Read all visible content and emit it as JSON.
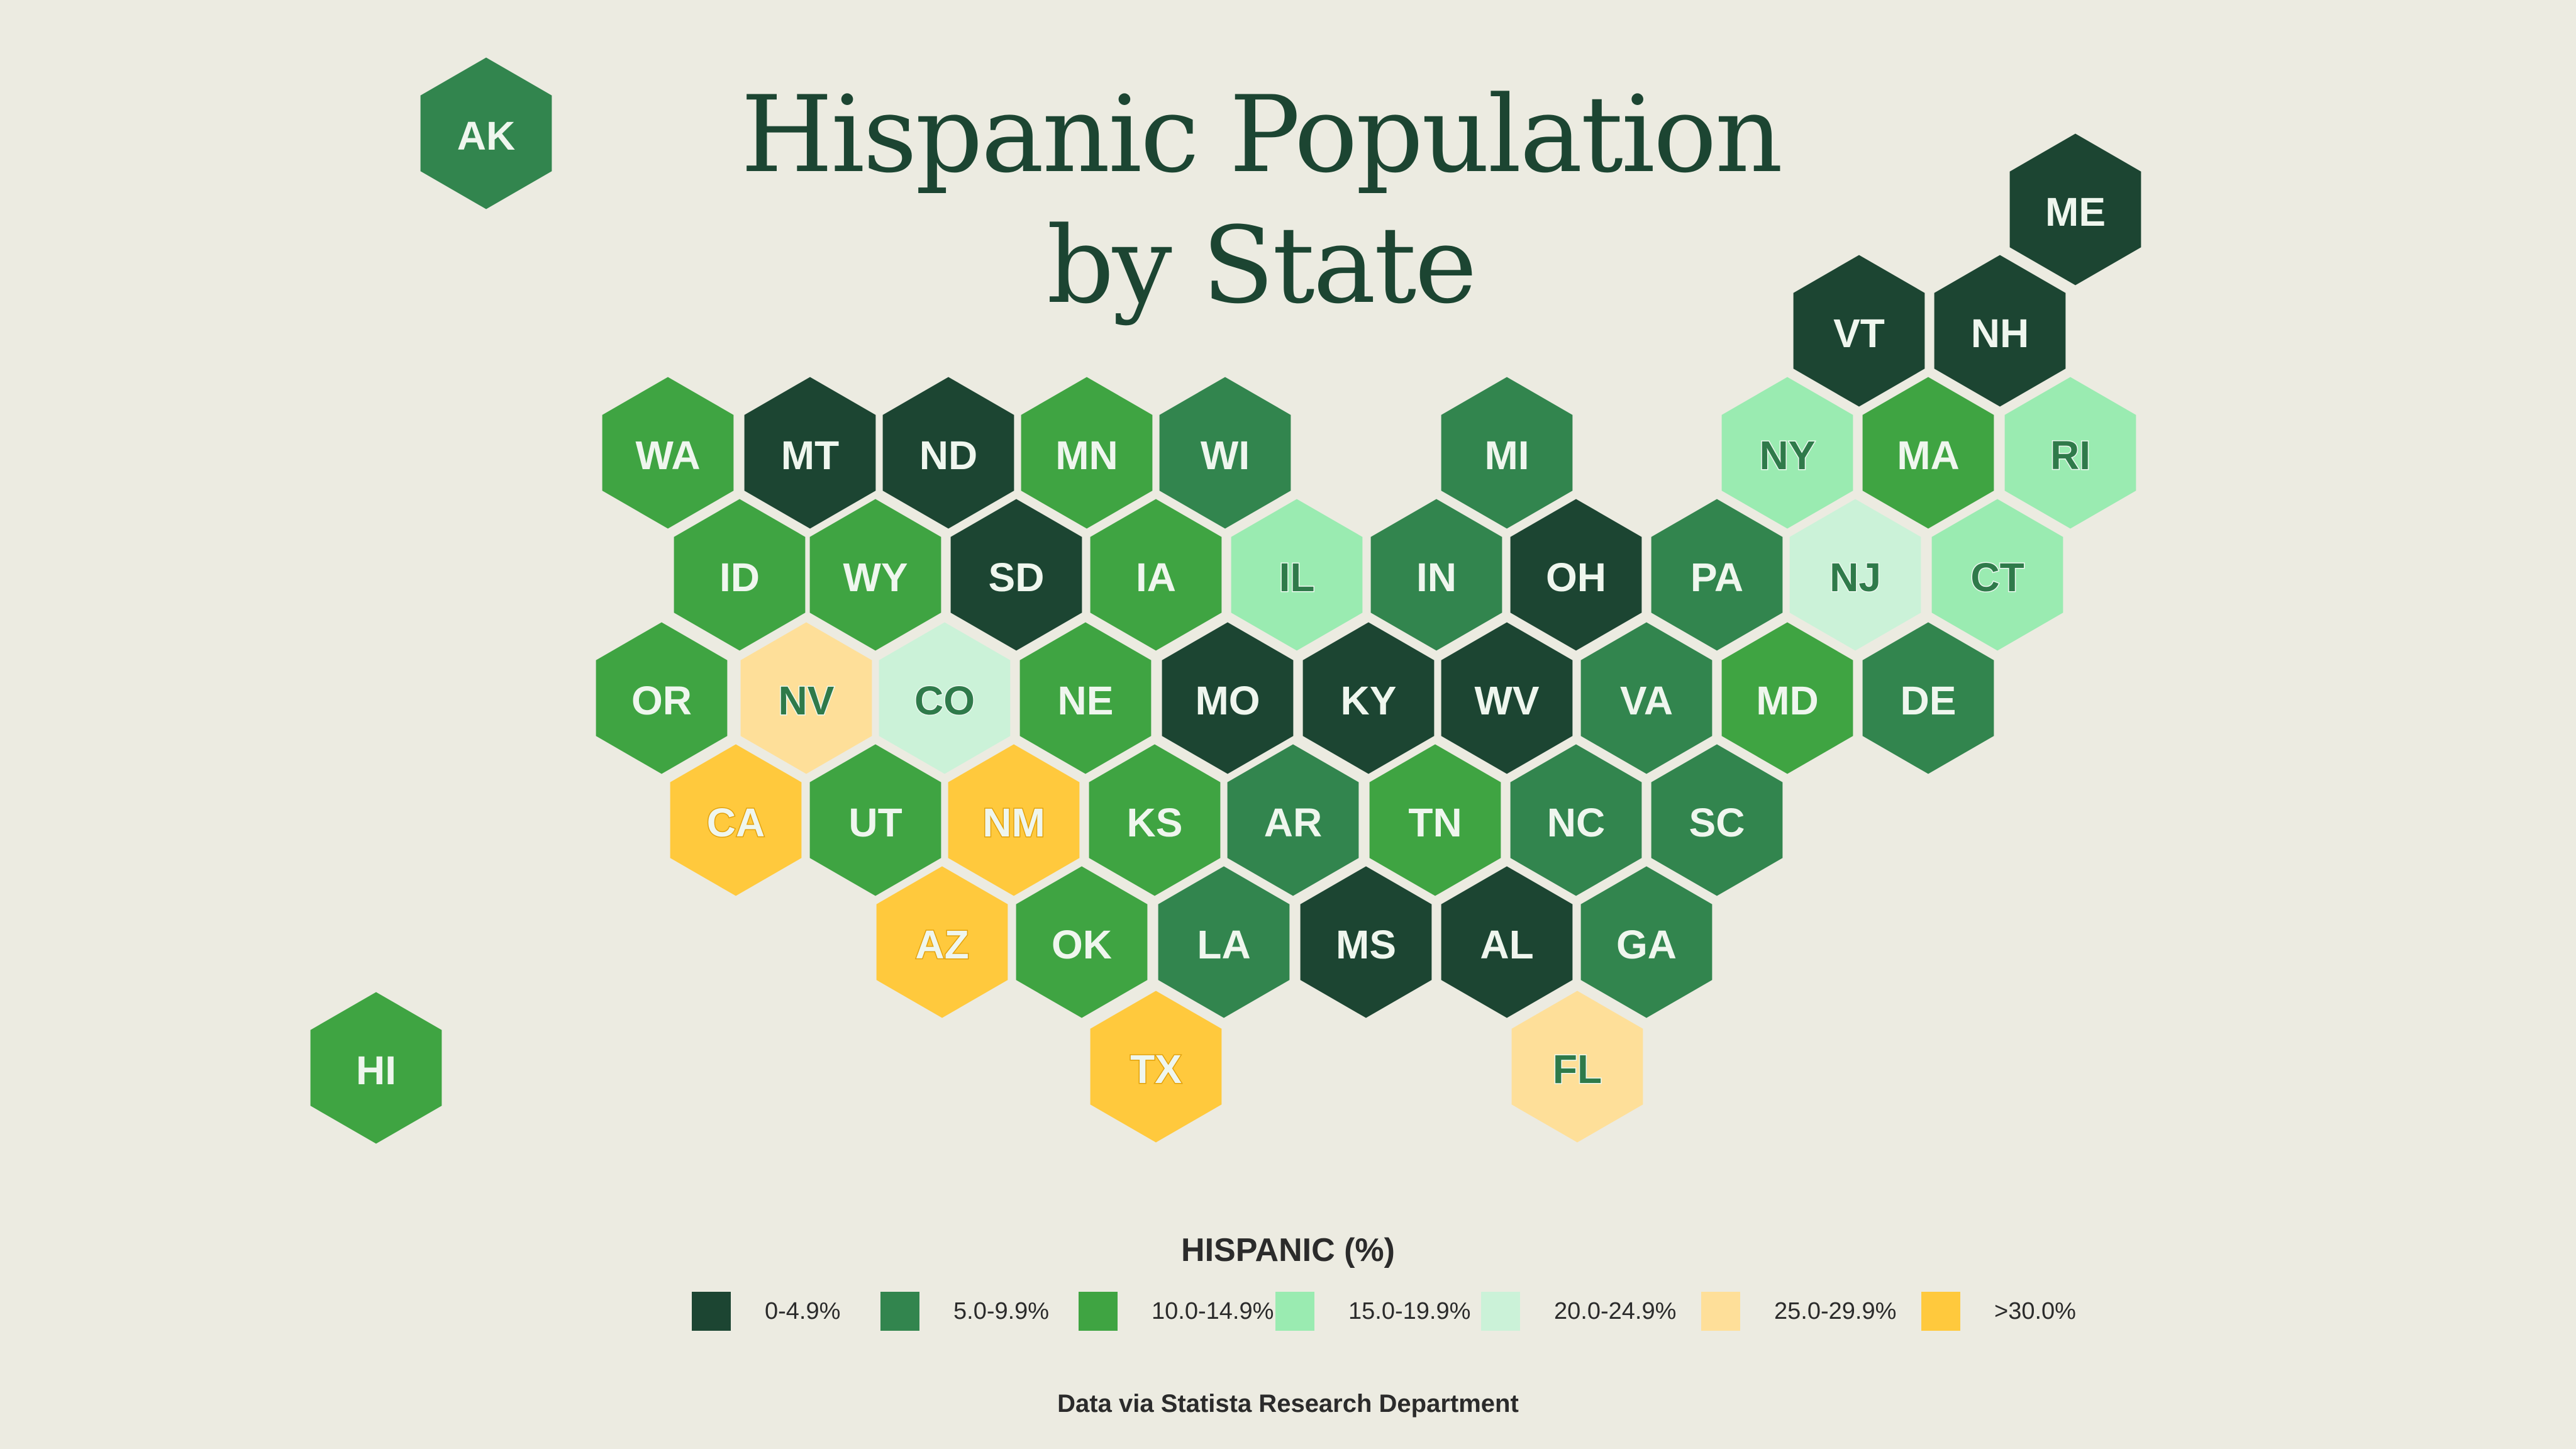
{
  "title": {
    "line1": "Hispanic Population",
    "line2": "by State"
  },
  "legend": {
    "title": "HISPANIC (%)",
    "items": [
      {
        "label": "0-4.9%",
        "color": "#1C4532"
      },
      {
        "label": "5.0-9.9%",
        "color": "#32854E"
      },
      {
        "label": "10.0-14.9%",
        "color": "#3FA442"
      },
      {
        "label": "15.0-19.9%",
        "color": "#9AEBB1"
      },
      {
        "label": "20.0-24.9%",
        "color": "#CBF2D8"
      },
      {
        "label": "25.0-29.9%",
        "color": "#FEDF99"
      },
      {
        "label": ">30.0%",
        "color": "#FFC93D"
      }
    ]
  },
  "source": "Data via Statista Research Department",
  "states": [
    {
      "code": "AK",
      "bin": 1
    },
    {
      "code": "ME",
      "bin": 0
    },
    {
      "code": "VT",
      "bin": 0
    },
    {
      "code": "NH",
      "bin": 0
    },
    {
      "code": "WA",
      "bin": 2
    },
    {
      "code": "MT",
      "bin": 0
    },
    {
      "code": "ND",
      "bin": 0
    },
    {
      "code": "MN",
      "bin": 2
    },
    {
      "code": "WI",
      "bin": 1
    },
    {
      "code": "MI",
      "bin": 1
    },
    {
      "code": "NY",
      "bin": 3
    },
    {
      "code": "MA",
      "bin": 2
    },
    {
      "code": "RI",
      "bin": 3
    },
    {
      "code": "ID",
      "bin": 2
    },
    {
      "code": "WY",
      "bin": 2
    },
    {
      "code": "SD",
      "bin": 0
    },
    {
      "code": "IA",
      "bin": 2
    },
    {
      "code": "IL",
      "bin": 3
    },
    {
      "code": "IN",
      "bin": 1
    },
    {
      "code": "OH",
      "bin": 0
    },
    {
      "code": "PA",
      "bin": 1
    },
    {
      "code": "NJ",
      "bin": 4
    },
    {
      "code": "CT",
      "bin": 3
    },
    {
      "code": "OR",
      "bin": 2
    },
    {
      "code": "NV",
      "bin": 5
    },
    {
      "code": "CO",
      "bin": 4
    },
    {
      "code": "NE",
      "bin": 2
    },
    {
      "code": "MO",
      "bin": 0
    },
    {
      "code": "KY",
      "bin": 0
    },
    {
      "code": "WV",
      "bin": 0
    },
    {
      "code": "VA",
      "bin": 1
    },
    {
      "code": "MD",
      "bin": 2
    },
    {
      "code": "DE",
      "bin": 1
    },
    {
      "code": "CA",
      "bin": 6
    },
    {
      "code": "UT",
      "bin": 2
    },
    {
      "code": "NM",
      "bin": 6
    },
    {
      "code": "KS",
      "bin": 2
    },
    {
      "code": "AR",
      "bin": 1
    },
    {
      "code": "TN",
      "bin": 2
    },
    {
      "code": "NC",
      "bin": 1
    },
    {
      "code": "SC",
      "bin": 1
    },
    {
      "code": "AZ",
      "bin": 6
    },
    {
      "code": "OK",
      "bin": 2
    },
    {
      "code": "LA",
      "bin": 1
    },
    {
      "code": "MS",
      "bin": 0
    },
    {
      "code": "AL",
      "bin": 0
    },
    {
      "code": "GA",
      "bin": 1
    },
    {
      "code": "TX",
      "bin": 6
    },
    {
      "code": "FL",
      "bin": 5
    },
    {
      "code": "HI",
      "bin": 2
    }
  ]
}
